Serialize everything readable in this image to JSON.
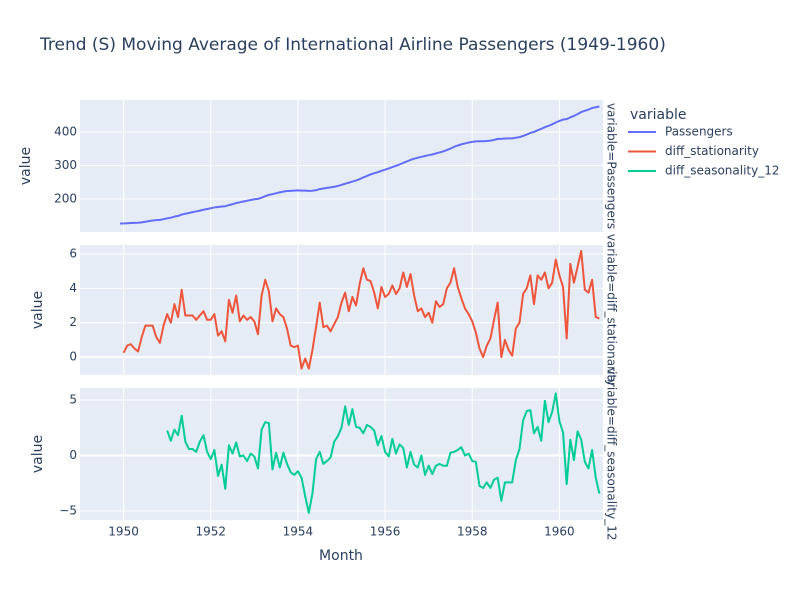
{
  "chart_data": {
    "type": "line",
    "title": "Trend (S) Moving Average of International Airline Passengers (1949-1960)",
    "x_label": "Month",
    "y_label": "value",
    "legend_title": "variable",
    "xlim": [
      "1949-01",
      "1961-01"
    ],
    "xticks": [
      1950,
      1952,
      1954,
      1956,
      1958,
      1960
    ],
    "grid": true,
    "x": [
      "1949-12",
      "1950-01",
      "1950-02",
      "1950-03",
      "1950-04",
      "1950-05",
      "1950-06",
      "1950-07",
      "1950-08",
      "1950-09",
      "1950-10",
      "1950-11",
      "1950-12",
      "1951-01",
      "1951-02",
      "1951-03",
      "1951-04",
      "1951-05",
      "1951-06",
      "1951-07",
      "1951-08",
      "1951-09",
      "1951-10",
      "1951-11",
      "1951-12",
      "1952-01",
      "1952-02",
      "1952-03",
      "1952-04",
      "1952-05",
      "1952-06",
      "1952-07",
      "1952-08",
      "1952-09",
      "1952-10",
      "1952-11",
      "1952-12",
      "1953-01",
      "1953-02",
      "1953-03",
      "1953-04",
      "1953-05",
      "1953-06",
      "1953-07",
      "1953-08",
      "1953-09",
      "1953-10",
      "1953-11",
      "1953-12",
      "1954-01",
      "1954-02",
      "1954-03",
      "1954-04",
      "1954-05",
      "1954-06",
      "1954-07",
      "1954-08",
      "1954-09",
      "1954-10",
      "1954-11",
      "1954-12",
      "1955-01",
      "1955-02",
      "1955-03",
      "1955-04",
      "1955-05",
      "1955-06",
      "1955-07",
      "1955-08",
      "1955-09",
      "1955-10",
      "1955-11",
      "1955-12",
      "1956-01",
      "1956-02",
      "1956-03",
      "1956-04",
      "1956-05",
      "1956-06",
      "1956-07",
      "1956-08",
      "1956-09",
      "1956-10",
      "1956-11",
      "1956-12",
      "1957-01",
      "1957-02",
      "1957-03",
      "1957-04",
      "1957-05",
      "1957-06",
      "1957-07",
      "1957-08",
      "1957-09",
      "1957-10",
      "1957-11",
      "1957-12",
      "1958-01",
      "1958-02",
      "1958-03",
      "1958-04",
      "1958-05",
      "1958-06",
      "1958-07",
      "1958-08",
      "1958-09",
      "1958-10",
      "1958-11",
      "1958-12",
      "1959-01",
      "1959-02",
      "1959-03",
      "1959-04",
      "1959-05",
      "1959-06",
      "1959-07",
      "1959-08",
      "1959-09",
      "1959-10",
      "1959-11",
      "1959-12",
      "1960-01",
      "1960-02",
      "1960-03",
      "1960-04",
      "1960-05",
      "1960-06",
      "1960-07",
      "1960-08",
      "1960-09",
      "1960-10",
      "1960-11",
      "1960-12"
    ],
    "series": [
      {
        "name": "Passengers",
        "facet_label": "variable=Passengers",
        "color": "#636efa",
        "ylim": [
          101.5,
          495.5
        ],
        "yticks": [
          200,
          300,
          400
        ],
        "values": [
          126.7,
          126.9,
          127.6,
          128.3,
          128.8,
          129.2,
          130.3,
          132.2,
          134.0,
          135.8,
          137.0,
          137.8,
          139.7,
          142.2,
          144.2,
          147.3,
          149.6,
          153.5,
          155.9,
          158.3,
          160.8,
          162.9,
          165.3,
          168.0,
          170.2,
          172.3,
          174.8,
          176.1,
          177.6,
          178.5,
          181.8,
          184.4,
          188.0,
          190.1,
          192.5,
          194.7,
          197.0,
          199.1,
          200.4,
          204.0,
          208.5,
          212.3,
          214.4,
          217.3,
          219.8,
          222.1,
          223.8,
          224.4,
          225.0,
          225.7,
          225.0,
          224.9,
          224.3,
          224.7,
          226.4,
          229.6,
          231.3,
          233.2,
          234.7,
          236.6,
          238.9,
          242.1,
          245.8,
          248.5,
          252.0,
          255.0,
          259.3,
          264.4,
          268.9,
          273.3,
          277.1,
          279.9,
          284.0,
          287.5,
          291.2,
          295.3,
          299.0,
          303.0,
          307.9,
          312.0,
          316.8,
          320.4,
          323.1,
          325.9,
          328.3,
          330.8,
          332.8,
          336.1,
          339.0,
          342.1,
          346.1,
          350.4,
          355.6,
          359.7,
          363.1,
          365.9,
          368.4,
          370.5,
          371.9,
          372.4,
          372.4,
          373.1,
          374.2,
          376.3,
          379.5,
          379.5,
          380.5,
          380.9,
          381.0,
          382.7,
          384.7,
          388.3,
          392.3,
          397.1,
          400.2,
          404.9,
          409.4,
          414.3,
          418.3,
          422.7,
          428.3,
          433.1,
          437.2,
          438.3,
          443.7,
          448.0,
          453.3,
          459.4,
          463.3,
          467.1,
          471.6,
          473.9,
          476.2
        ]
      },
      {
        "name": "diff_stationarity",
        "facet_label": "variable=diff_stationarity",
        "color": "#EF553B",
        "ylim": [
          -1.04,
          6.52
        ],
        "yticks": [
          0,
          2,
          4,
          6
        ],
        "values": [
          null,
          0.25,
          0.67,
          0.75,
          0.5,
          0.33,
          1.17,
          1.83,
          1.83,
          1.83,
          1.17,
          0.83,
          1.83,
          2.5,
          2.0,
          3.08,
          2.33,
          3.92,
          2.42,
          2.42,
          2.42,
          2.17,
          2.42,
          2.67,
          2.17,
          2.17,
          2.5,
          1.25,
          1.5,
          0.92,
          3.33,
          2.58,
          3.58,
          2.08,
          2.42,
          2.17,
          2.33,
          2.08,
          1.33,
          3.58,
          4.5,
          3.83,
          2.08,
          2.83,
          2.5,
          2.33,
          1.67,
          0.67,
          0.58,
          0.67,
          -0.67,
          -0.08,
          -0.67,
          0.42,
          1.75,
          3.17,
          1.75,
          1.83,
          1.5,
          1.92,
          2.33,
          3.17,
          3.75,
          2.67,
          3.5,
          3.0,
          4.25,
          5.17,
          4.5,
          4.42,
          3.75,
          2.83,
          4.08,
          3.5,
          3.67,
          4.17,
          3.67,
          4.0,
          4.92,
          4.08,
          4.83,
          3.58,
          2.67,
          2.83,
          2.33,
          2.58,
          2.0,
          3.25,
          2.92,
          3.08,
          4.0,
          4.33,
          5.17,
          4.08,
          3.42,
          2.83,
          2.5,
          2.08,
          1.42,
          0.5,
          0,
          0.67,
          1.08,
          2.17,
          3.17,
          0,
          1.0,
          0.42,
          0.08,
          1.67,
          2.0,
          3.67,
          4.0,
          4.75,
          3.08,
          4.75,
          4.5,
          4.92,
          4.0,
          4.33,
          5.67,
          4.75,
          4.08,
          1.08,
          5.42,
          4.33,
          5.25,
          6.17,
          3.92,
          3.75,
          4.5,
          2.33,
          2.25
        ]
      },
      {
        "name": "diff_seasonality_12",
        "facet_label": "variable=diff_seasonality_12",
        "color": "#00cc96",
        "ylim": [
          -5.81,
          6.08
        ],
        "yticks": [
          {
            "value": -5,
            "label": "−5"
          },
          0,
          5
        ],
        "values": [
          null,
          null,
          null,
          null,
          null,
          null,
          null,
          null,
          null,
          null,
          null,
          null,
          null,
          2.25,
          1.33,
          2.33,
          1.83,
          3.58,
          1.25,
          0.58,
          0.58,
          0.33,
          1.25,
          1.83,
          0.33,
          -0.33,
          0.5,
          -1.83,
          -0.83,
          -3.0,
          0.92,
          0.17,
          1.17,
          -0.08,
          0,
          -0.5,
          0.17,
          -0.08,
          -1.17,
          2.33,
          3.0,
          2.92,
          -1.25,
          0.25,
          -1.08,
          0.25,
          -0.75,
          -1.5,
          -1.75,
          -1.42,
          -2.0,
          -3.67,
          -5.17,
          -3.42,
          -0.33,
          0.33,
          -0.75,
          -0.5,
          -0.17,
          1.25,
          1.75,
          2.5,
          4.42,
          2.75,
          4.17,
          2.58,
          2.5,
          2.0,
          2.75,
          2.58,
          2.25,
          0.92,
          1.75,
          0.33,
          -0.08,
          1.5,
          0.17,
          1.0,
          0.67,
          -1.08,
          0.33,
          -0.83,
          -1.08,
          0,
          -1.75,
          -0.92,
          -1.67,
          -0.92,
          -0.75,
          -0.92,
          -0.92,
          0.25,
          0.33,
          0.5,
          0.75,
          0,
          0.17,
          -0.5,
          -0.58,
          -2.75,
          -2.92,
          -2.42,
          -2.92,
          -2.17,
          -2.0,
          -4.08,
          -2.42,
          -2.42,
          -2.42,
          -0.42,
          0.58,
          3.17,
          4.0,
          4.08,
          2.0,
          2.58,
          1.33,
          4.92,
          3.0,
          3.92,
          5.58,
          3.08,
          2.08,
          -2.58,
          1.42,
          -0.42,
          2.17,
          1.42,
          -0.58,
          -1.17,
          0.5,
          -2.0,
          -3.42
        ]
      }
    ]
  }
}
